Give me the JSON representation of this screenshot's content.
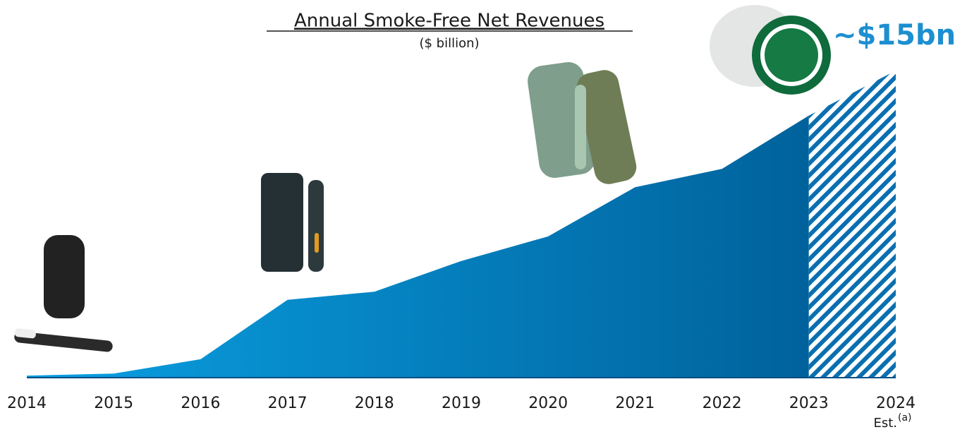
{
  "chart_data": {
    "type": "area",
    "title": "Annual Smoke-Free Net Revenues",
    "subtitle": "($ billion)",
    "categories": [
      "2014",
      "2015",
      "2016",
      "2017",
      "2018",
      "2019",
      "2020",
      "2021",
      "2022",
      "2023",
      "2024"
    ],
    "values": [
      0.1,
      0.2,
      0.9,
      3.8,
      4.2,
      5.7,
      6.9,
      9.3,
      10.2,
      12.8,
      15
    ],
    "value_labels": [
      null,
      null,
      null,
      null,
      null,
      null,
      null,
      null,
      null,
      null,
      "~$15bn"
    ],
    "estimate_label": "Est.",
    "footnote": "(a)",
    "colors": [
      "#0aa0e2",
      "#00629c"
    ],
    "ylim": [
      0,
      15
    ]
  }
}
